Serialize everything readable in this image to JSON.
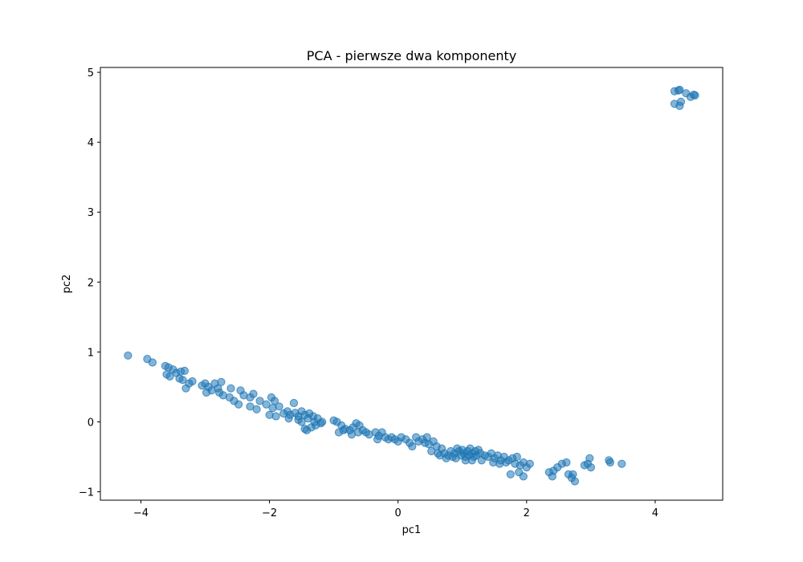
{
  "chart_data": {
    "type": "scatter",
    "title": "PCA - pierwsze dwa komponenty",
    "xlabel": "pc1",
    "ylabel": "pc2",
    "xlim": [
      -4.63,
      5.05
    ],
    "ylim": [
      -1.12,
      5.07
    ],
    "xticks": [
      -4,
      -2,
      0,
      2,
      4
    ],
    "yticks": [
      -1,
      0,
      1,
      2,
      3,
      4,
      5
    ],
    "xtick_labels": [
      "−4",
      "−2",
      "0",
      "2",
      "4"
    ],
    "ytick_labels": [
      "−1",
      "0",
      "1",
      "2",
      "3",
      "4",
      "5"
    ],
    "grid": false,
    "legend": "none",
    "marker_color": "#1f77b4",
    "marker_alpha": 0.55,
    "points": [
      [
        -4.2,
        0.95
      ],
      [
        -3.9,
        0.9
      ],
      [
        -3.82,
        0.85
      ],
      [
        -3.62,
        0.8
      ],
      [
        -3.57,
        0.78
      ],
      [
        -3.5,
        0.75
      ],
      [
        -3.45,
        0.7
      ],
      [
        -3.38,
        0.72
      ],
      [
        -3.32,
        0.73
      ],
      [
        -3.6,
        0.68
      ],
      [
        -3.55,
        0.65
      ],
      [
        -3.4,
        0.62
      ],
      [
        -3.35,
        0.6
      ],
      [
        -3.25,
        0.55
      ],
      [
        -3.2,
        0.58
      ],
      [
        -3.3,
        0.48
      ],
      [
        -3.05,
        0.52
      ],
      [
        -3.0,
        0.55
      ],
      [
        -2.95,
        0.5
      ],
      [
        -2.85,
        0.55
      ],
      [
        -2.75,
        0.57
      ],
      [
        -2.8,
        0.48
      ],
      [
        -2.9,
        0.45
      ],
      [
        -2.98,
        0.42
      ],
      [
        -2.78,
        0.42
      ],
      [
        -2.72,
        0.38
      ],
      [
        -2.62,
        0.35
      ],
      [
        -2.6,
        0.48
      ],
      [
        -2.45,
        0.45
      ],
      [
        -2.4,
        0.38
      ],
      [
        -2.3,
        0.35
      ],
      [
        -2.25,
        0.4
      ],
      [
        -2.55,
        0.3
      ],
      [
        -2.48,
        0.25
      ],
      [
        -2.3,
        0.22
      ],
      [
        -2.2,
        0.18
      ],
      [
        -2.15,
        0.3
      ],
      [
        -2.05,
        0.25
      ],
      [
        -1.97,
        0.35
      ],
      [
        -1.92,
        0.3
      ],
      [
        -1.95,
        0.2
      ],
      [
        -1.85,
        0.22
      ],
      [
        -2.0,
        0.1
      ],
      [
        -1.9,
        0.08
      ],
      [
        -1.78,
        0.12
      ],
      [
        -1.72,
        0.15
      ],
      [
        -1.68,
        0.1
      ],
      [
        -1.6,
        0.13
      ],
      [
        -1.55,
        0.08
      ],
      [
        -1.7,
        0.05
      ],
      [
        -1.62,
        0.27
      ],
      [
        -1.5,
        0.15
      ],
      [
        -1.45,
        0.1
      ],
      [
        -1.4,
        0.05
      ],
      [
        -1.38,
        0.12
      ],
      [
        -1.32,
        0.08
      ],
      [
        -1.3,
        0.0
      ],
      [
        -1.25,
        0.05
      ],
      [
        -1.2,
        -0.02
      ],
      [
        -1.28,
        -0.05
      ],
      [
        -1.35,
        -0.08
      ],
      [
        -1.45,
        -0.1
      ],
      [
        -1.42,
        -0.12
      ],
      [
        -1.18,
        0.0
      ],
      [
        -1.5,
        0.0
      ],
      [
        -1.55,
        0.03
      ],
      [
        -1.0,
        0.02
      ],
      [
        -0.95,
        0.0
      ],
      [
        -0.88,
        -0.05
      ],
      [
        -0.82,
        -0.1
      ],
      [
        -0.75,
        -0.12
      ],
      [
        -0.7,
        -0.08
      ],
      [
        -0.65,
        -0.02
      ],
      [
        -0.6,
        -0.05
      ],
      [
        -0.55,
        -0.12
      ],
      [
        -0.62,
        -0.15
      ],
      [
        -0.72,
        -0.18
      ],
      [
        -0.85,
        -0.12
      ],
      [
        -0.92,
        -0.15
      ],
      [
        -0.5,
        -0.15
      ],
      [
        -0.45,
        -0.18
      ],
      [
        -0.35,
        -0.15
      ],
      [
        -0.3,
        -0.2
      ],
      [
        -0.25,
        -0.15
      ],
      [
        -0.32,
        -0.25
      ],
      [
        -0.2,
        -0.22
      ],
      [
        -0.15,
        -0.25
      ],
      [
        -0.1,
        -0.22
      ],
      [
        -0.05,
        -0.25
      ],
      [
        0.0,
        -0.28
      ],
      [
        0.05,
        -0.22
      ],
      [
        0.12,
        -0.25
      ],
      [
        0.18,
        -0.3
      ],
      [
        0.22,
        -0.35
      ],
      [
        0.28,
        -0.22
      ],
      [
        0.32,
        -0.28
      ],
      [
        0.38,
        -0.25
      ],
      [
        0.42,
        -0.3
      ],
      [
        0.48,
        -0.32
      ],
      [
        0.55,
        -0.28
      ],
      [
        0.6,
        -0.35
      ],
      [
        0.45,
        -0.22
      ],
      [
        0.52,
        -0.42
      ],
      [
        0.62,
        -0.45
      ],
      [
        0.68,
        -0.38
      ],
      [
        0.72,
        -0.45
      ],
      [
        0.78,
        -0.48
      ],
      [
        0.82,
        -0.42
      ],
      [
        0.85,
        -0.5
      ],
      [
        0.88,
        -0.45
      ],
      [
        0.92,
        -0.38
      ],
      [
        0.95,
        -0.42
      ],
      [
        0.98,
        -0.48
      ],
      [
        1.0,
        -0.4
      ],
      [
        1.02,
        -0.45
      ],
      [
        1.05,
        -0.5
      ],
      [
        1.08,
        -0.42
      ],
      [
        1.1,
        -0.48
      ],
      [
        1.12,
        -0.38
      ],
      [
        1.15,
        -0.45
      ],
      [
        1.18,
        -0.5
      ],
      [
        1.2,
        -0.42
      ],
      [
        1.22,
        -0.48
      ],
      [
        1.25,
        -0.4
      ],
      [
        1.28,
        -0.45
      ],
      [
        0.9,
        -0.52
      ],
      [
        1.05,
        -0.55
      ],
      [
        1.15,
        -0.55
      ],
      [
        0.75,
        -0.52
      ],
      [
        0.65,
        -0.48
      ],
      [
        1.3,
        -0.55
      ],
      [
        1.35,
        -0.48
      ],
      [
        1.4,
        -0.5
      ],
      [
        1.45,
        -0.45
      ],
      [
        1.5,
        -0.52
      ],
      [
        1.55,
        -0.48
      ],
      [
        1.6,
        -0.55
      ],
      [
        1.65,
        -0.5
      ],
      [
        1.48,
        -0.58
      ],
      [
        1.58,
        -0.6
      ],
      [
        1.68,
        -0.58
      ],
      [
        1.72,
        -0.55
      ],
      [
        1.78,
        -0.52
      ],
      [
        1.82,
        -0.6
      ],
      [
        1.85,
        -0.5
      ],
      [
        1.9,
        -0.62
      ],
      [
        1.95,
        -0.58
      ],
      [
        2.0,
        -0.65
      ],
      [
        2.05,
        -0.6
      ],
      [
        1.75,
        -0.75
      ],
      [
        1.88,
        -0.72
      ],
      [
        1.95,
        -0.78
      ],
      [
        2.35,
        -0.72
      ],
      [
        2.42,
        -0.7
      ],
      [
        2.48,
        -0.65
      ],
      [
        2.55,
        -0.6
      ],
      [
        2.4,
        -0.78
      ],
      [
        2.62,
        -0.58
      ],
      [
        2.65,
        -0.75
      ],
      [
        2.7,
        -0.8
      ],
      [
        2.75,
        -0.85
      ],
      [
        2.72,
        -0.75
      ],
      [
        2.9,
        -0.62
      ],
      [
        2.95,
        -0.6
      ],
      [
        3.0,
        -0.65
      ],
      [
        2.98,
        -0.52
      ],
      [
        3.28,
        -0.55
      ],
      [
        3.3,
        -0.58
      ],
      [
        3.48,
        -0.6
      ],
      [
        4.3,
        4.73
      ],
      [
        4.36,
        4.74
      ],
      [
        4.38,
        4.75
      ],
      [
        4.48,
        4.7
      ],
      [
        4.55,
        4.65
      ],
      [
        4.6,
        4.68
      ],
      [
        4.62,
        4.67
      ],
      [
        4.3,
        4.55
      ],
      [
        4.38,
        4.52
      ],
      [
        4.4,
        4.58
      ]
    ]
  }
}
